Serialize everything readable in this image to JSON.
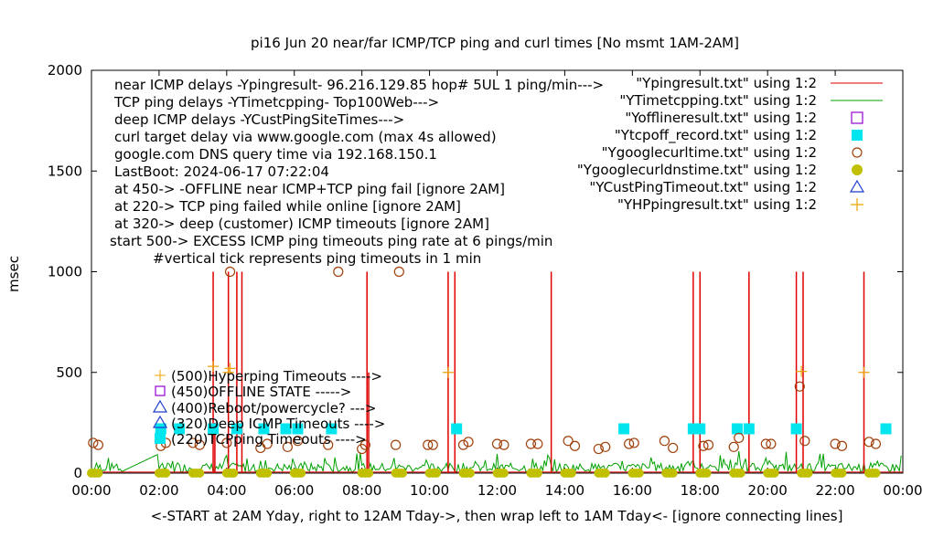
{
  "chart_data": {
    "type": "line",
    "title": "pi16 Jun 20  near/far ICMP/TCP ping and curl times [No msmt 1AM-2AM]",
    "xlabel": "<-START at 2AM Yday, right to 12AM Tday->, then wrap left to 1AM Tday<- [ignore connecting lines]",
    "ylabel": "msec",
    "xlim": [
      0,
      24
    ],
    "ylim": [
      0,
      2000
    ],
    "x_ticks": [
      "00:00",
      "02:00",
      "04:00",
      "06:00",
      "08:00",
      "10:00",
      "12:00",
      "14:00",
      "16:00",
      "18:00",
      "20:00",
      "22:00",
      "00:00"
    ],
    "y_ticks": [
      0,
      500,
      1000,
      1500,
      2000
    ],
    "grid": false,
    "legend_position": "top-right",
    "info_text": [
      "near ICMP delays -Ypingresult- 96.216.129.85 hop# 5UL 1 ping/min--->",
      "TCP ping delays -YTimetcpping- Top100Web--->",
      "deep ICMP delays -YCustPingSiteTimes--->",
      "curl target delay via www.google.com (max 4s allowed)",
      "google.com DNS query time via 192.168.150.1",
      "LastBoot: 2024-06-17 07:22:04",
      "at 450-> -OFFLINE near ICMP+TCP ping fail [ignore 2AM]",
      "at 220-> TCP ping failed while online [ignore 2AM]",
      "at 320-> deep (customer) ICMP timeouts [ignore 2AM]",
      "start 500-> EXCESS ICMP ping timeouts ping rate at 6 pings/min",
      "#vertical tick represents ping timeouts in 1 min"
    ],
    "key_labels": [
      "(500)Hyperping Timeouts ---->",
      "(450)OFFLINE STATE ----->",
      "(400)Reboot/powercycle? --->",
      "(320)Deep ICMP Timeouts ---->",
      "(220)TCPping Timeouts ---->"
    ],
    "series": [
      {
        "name": "\"Ypingresult.txt\" using 1:2",
        "style": "line",
        "color": "#e00000",
        "spikes": [
          [
            3.6,
            1000
          ],
          [
            3.65,
            250
          ],
          [
            4.05,
            1000
          ],
          [
            4.3,
            1000
          ],
          [
            4.45,
            1000
          ],
          [
            8.15,
            1000
          ],
          [
            8.2,
            500
          ],
          [
            10.55,
            1000
          ],
          [
            10.75,
            1000
          ],
          [
            13.6,
            1000
          ],
          [
            17.8,
            1000
          ],
          [
            18.0,
            1000
          ],
          [
            19.45,
            1000
          ],
          [
            20.85,
            1000
          ],
          [
            21.05,
            1000
          ],
          [
            22.85,
            1000
          ]
        ],
        "baseline": 5
      },
      {
        "name": "\"YTimetcpping.txt\" using 1:2",
        "style": "line",
        "color": "#00a000"
      },
      {
        "name": "\"Yofflineresult.txt\" using 1:2",
        "style": "open-square",
        "color": "#9400d3",
        "points": []
      },
      {
        "name": "\"Ytcpoff_record.txt\" using 1:2",
        "style": "filled-square",
        "color": "#00e5ee",
        "x": [
          2.05,
          2.6,
          3.6,
          4.3,
          5.1,
          5.75,
          6.1,
          7.1,
          10.8,
          15.75,
          17.8,
          18.0,
          19.1,
          19.45,
          20.85,
          23.5
        ],
        "y_constant": 220
      },
      {
        "name": "\"Ygooglecurltime.txt\" using 1:2",
        "style": "open-circle",
        "color": "#a0400a",
        "x": [
          0.05,
          0.2,
          2.05,
          2.2,
          3.0,
          3.2,
          4.0,
          4.1,
          5.0,
          5.2,
          5.8,
          6.1,
          7.0,
          7.3,
          8.0,
          8.1,
          9.0,
          9.1,
          9.95,
          10.1,
          11.0,
          11.15,
          12.0,
          12.2,
          13.0,
          13.2,
          14.1,
          14.3,
          15.0,
          15.2,
          15.9,
          16.05,
          16.95,
          17.2,
          18.1,
          18.25,
          19.0,
          19.15,
          19.95,
          20.1,
          20.95,
          21.1,
          22.0,
          22.2,
          23.0,
          23.2
        ],
        "y": [
          150,
          140,
          135,
          150,
          150,
          140,
          150,
          1000,
          125,
          145,
          130,
          160,
          140,
          1000,
          120,
          140,
          140,
          1000,
          140,
          140,
          140,
          155,
          145,
          140,
          145,
          145,
          160,
          135,
          120,
          130,
          145,
          150,
          160,
          125,
          135,
          140,
          130,
          175,
          145,
          145,
          430,
          160,
          145,
          135,
          155,
          145
        ]
      },
      {
        "name": "\"Ygooglecurldnstime.txt\" using 1:2",
        "style": "filled-circle",
        "color": "#c0c000",
        "x": [
          0.0,
          0.1,
          0.2,
          2.0,
          2.1,
          2.2,
          3.0,
          3.1,
          3.2,
          4.0,
          4.1,
          4.2,
          5.0,
          5.1,
          5.2,
          6.0,
          6.1,
          6.2,
          8.0,
          8.1,
          8.2,
          9.0,
          9.1,
          9.2,
          10.0,
          10.1,
          10.2,
          11.0,
          11.1,
          11.2,
          12.0,
          12.1,
          12.2,
          13.0,
          13.1,
          13.2,
          14.0,
          14.1,
          14.2,
          15.0,
          15.1,
          15.2,
          16.0,
          16.1,
          16.2,
          17.0,
          17.1,
          17.2,
          18.0,
          18.1,
          18.2,
          19.0,
          19.1,
          19.2,
          20.0,
          20.1,
          20.2,
          21.0,
          21.1,
          21.2,
          22.0,
          22.1,
          22.2,
          23.0,
          23.1,
          23.2
        ],
        "y_constant": 0
      },
      {
        "name": "\"YCustPingTimeout.txt\" using 1:2",
        "style": "open-triangle",
        "color": "#1e3ccc",
        "points": []
      },
      {
        "name": "\"YHPpingresult.txt\" using 1:2",
        "style": "plus",
        "color": "#f0a000",
        "x": [
          3.6,
          4.05,
          4.1,
          10.55,
          21.0,
          22.85
        ],
        "y": [
          530,
          500,
          520,
          500,
          505,
          500
        ]
      }
    ]
  }
}
